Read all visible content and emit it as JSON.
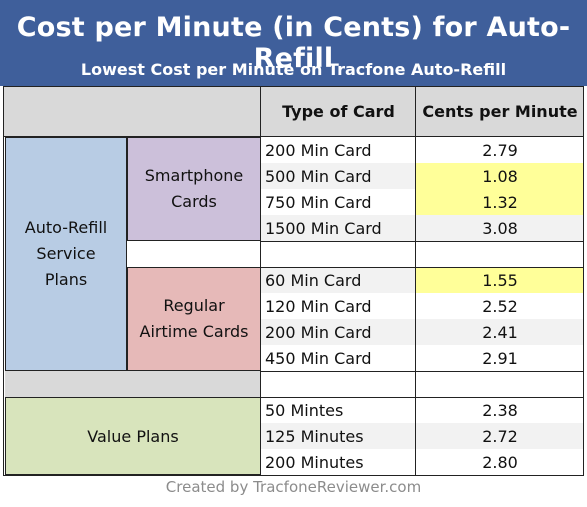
{
  "header": {
    "title": "Cost per Minute (in Cents) for Auto-Refill",
    "subtitle": "Lowest Cost per Minute on Tracfone Auto-Refill"
  },
  "columns": {
    "type": "Type of Card",
    "cents": "Cents per Minute"
  },
  "groups": {
    "autorefill": "Auto-Refill Service Plans",
    "smartphone": "Smartphone Cards",
    "regular": "Regular Airtime Cards",
    "value": "Value Plans"
  },
  "chart_data": {
    "type": "table",
    "title": "Cost per Minute (in Cents) for Auto-Refill",
    "subtitle": "Lowest Cost per Minute on Tracfone Auto-Refill",
    "columns": [
      "Type of Card",
      "Cents per Minute"
    ],
    "rows": [
      {
        "group": "Auto-Refill Service Plans",
        "subgroup": "Smartphone Cards",
        "card": "200 Min Card",
        "cents": "2.79",
        "highlight": false
      },
      {
        "group": "Auto-Refill Service Plans",
        "subgroup": "Smartphone Cards",
        "card": "500 Min Card",
        "cents": "1.08",
        "highlight": true
      },
      {
        "group": "Auto-Refill Service Plans",
        "subgroup": "Smartphone Cards",
        "card": "750 Min Card",
        "cents": "1.32",
        "highlight": true
      },
      {
        "group": "Auto-Refill Service Plans",
        "subgroup": "Smartphone Cards",
        "card": "1500 Min Card",
        "cents": "3.08",
        "highlight": false
      },
      {
        "group": "Auto-Refill Service Plans",
        "subgroup": "Regular Airtime Cards",
        "card": "60 Min Card",
        "cents": "1.55",
        "highlight": true
      },
      {
        "group": "Auto-Refill Service Plans",
        "subgroup": "Regular Airtime Cards",
        "card": "120 Min Card",
        "cents": "2.52",
        "highlight": false
      },
      {
        "group": "Auto-Refill Service Plans",
        "subgroup": "Regular Airtime Cards",
        "card": "200 Min Card",
        "cents": "2.41",
        "highlight": false
      },
      {
        "group": "Auto-Refill Service Plans",
        "subgroup": "Regular Airtime Cards",
        "card": "450 Min Card",
        "cents": "2.91",
        "highlight": false
      },
      {
        "group": "Value Plans",
        "subgroup": "",
        "card": "50 Mintes",
        "cents": "2.38",
        "highlight": false
      },
      {
        "group": "Value Plans",
        "subgroup": "",
        "card": "125 Minutes",
        "cents": "2.72",
        "highlight": false
      },
      {
        "group": "Value Plans",
        "subgroup": "",
        "card": "200 Minutes",
        "cents": "2.80",
        "highlight": false
      }
    ],
    "colors": {
      "header": "#3f5f9b",
      "autorefill": "#b8cce4",
      "smartphone": "#ccc0da",
      "regular": "#e6b9b8",
      "value": "#d8e4bc",
      "highlight": "#ffff99",
      "column_header": "#d9d9d9"
    }
  },
  "footer": "Created by TracfoneReviewer.com"
}
